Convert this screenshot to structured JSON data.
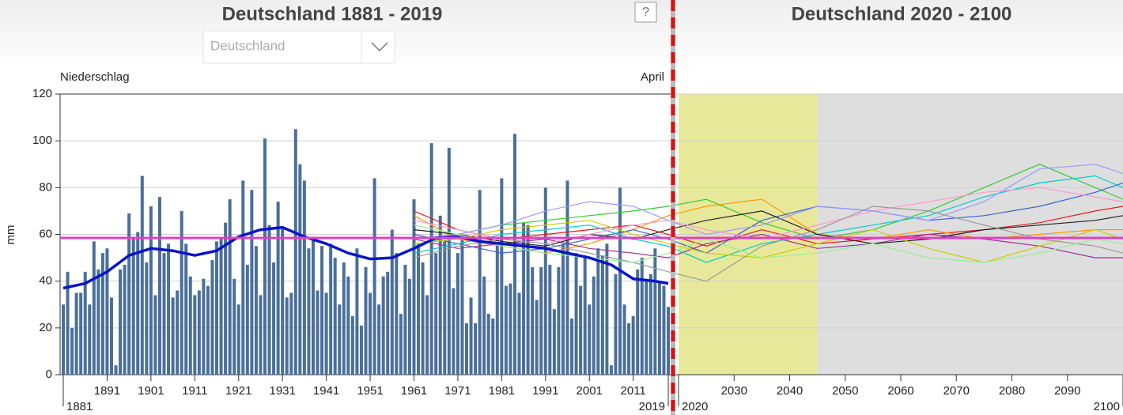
{
  "header": {
    "title_left": "Deutschland 1881 - 2019",
    "title_right": "Deutschland 2020 - 2100",
    "help": "?",
    "dropdown": "Deutschland"
  },
  "chart_data": {
    "type": "bar",
    "y_label": "Niederschlag",
    "month": "April",
    "y_unit": "mm",
    "x": [
      1881,
      1882,
      1883,
      1884,
      1885,
      1886,
      1887,
      1888,
      1889,
      1890,
      1891,
      1892,
      1893,
      1894,
      1895,
      1896,
      1897,
      1898,
      1899,
      1900,
      1901,
      1902,
      1903,
      1904,
      1905,
      1906,
      1907,
      1908,
      1909,
      1910,
      1911,
      1912,
      1913,
      1914,
      1915,
      1916,
      1917,
      1918,
      1919,
      1920,
      1921,
      1922,
      1923,
      1924,
      1925,
      1926,
      1927,
      1928,
      1929,
      1930,
      1931,
      1932,
      1933,
      1934,
      1935,
      1936,
      1937,
      1938,
      1939,
      1940,
      1941,
      1942,
      1943,
      1944,
      1945,
      1946,
      1947,
      1948,
      1949,
      1950,
      1951,
      1952,
      1953,
      1954,
      1955,
      1956,
      1957,
      1958,
      1959,
      1960,
      1961,
      1962,
      1963,
      1964,
      1965,
      1966,
      1967,
      1968,
      1969,
      1970,
      1971,
      1972,
      1973,
      1974,
      1975,
      1976,
      1977,
      1978,
      1979,
      1980,
      1981,
      1982,
      1983,
      1984,
      1985,
      1986,
      1987,
      1988,
      1989,
      1990,
      1991,
      1992,
      1993,
      1994,
      1995,
      1996,
      1997,
      1998,
      1999,
      2000,
      2001,
      2002,
      2003,
      2004,
      2005,
      2006,
      2007,
      2008,
      2009,
      2010,
      2011,
      2012,
      2013,
      2014,
      2015,
      2016,
      2017,
      2018,
      2019
    ],
    "values": [
      30,
      44,
      20,
      35,
      35,
      44,
      30,
      57,
      45,
      52,
      54,
      33,
      4,
      45,
      47,
      69,
      59,
      61,
      85,
      48,
      72,
      34,
      76,
      52,
      56,
      33,
      36,
      70,
      56,
      42,
      34,
      36,
      41,
      38,
      49,
      57,
      58,
      65,
      75,
      41,
      30,
      83,
      47,
      79,
      55,
      34,
      101,
      64,
      48,
      74,
      63,
      33,
      35,
      105,
      90,
      83,
      54,
      59,
      36,
      55,
      35,
      56,
      50,
      30,
      48,
      42,
      25,
      54,
      21,
      46,
      35,
      84,
      30,
      42,
      44,
      62,
      52,
      26,
      47,
      41,
      75,
      56,
      48,
      34,
      99,
      52,
      68,
      57,
      97,
      37,
      52,
      58,
      22,
      33,
      22,
      79,
      42,
      26,
      24,
      56,
      84,
      38,
      39,
      103,
      35,
      65,
      64,
      46,
      32,
      46,
      80,
      47,
      28,
      46,
      56,
      83,
      24,
      52,
      38,
      51,
      30,
      42,
      54,
      51,
      56,
      4,
      43,
      80,
      30,
      22,
      25,
      45,
      50,
      41,
      43,
      54,
      40,
      38,
      29
    ],
    "color": "#4a6f9a",
    "smooth": {
      "color": "#0a14c8",
      "x": [
        1881,
        1886,
        1891,
        1896,
        1901,
        1906,
        1911,
        1916,
        1921,
        1926,
        1931,
        1936,
        1941,
        1946,
        1951,
        1956,
        1961,
        1966,
        1971,
        1976,
        1981,
        1986,
        1991,
        1996,
        2001,
        2006,
        2011,
        2016,
        2019
      ],
      "values": [
        37,
        39,
        44,
        51,
        54,
        53,
        51,
        53,
        59,
        62,
        63,
        59,
        56,
        52,
        49.5,
        50,
        54,
        58.5,
        59,
        57,
        56,
        55,
        54,
        52,
        50,
        47,
        41,
        40,
        39
      ]
    },
    "mean": 58.5,
    "mean_color": "#e040c0",
    "ylim": [
      0,
      120
    ],
    "yticks": [
      0,
      20,
      40,
      60,
      80,
      100,
      120
    ],
    "xlim": [
      1881,
      2019
    ],
    "xticks": [
      1881,
      1891,
      1901,
      1911,
      1921,
      1931,
      1941,
      1951,
      1961,
      1971,
      1981,
      1991,
      2001,
      2011,
      2019
    ],
    "xlim2": [
      2020,
      2100
    ],
    "xticks2": [
      2020,
      2030,
      2040,
      2050,
      2060,
      2070,
      2080,
      2090,
      2100
    ],
    "periods": [
      {
        "range": [
          2020,
          2045
        ],
        "color": "#e8e89a"
      },
      {
        "range": [
          2045,
          2100
        ],
        "color": "#dedede"
      }
    ],
    "proj_x": [
      1961,
      1971,
      1981,
      1991,
      2001,
      2011,
      2019,
      2025,
      2035,
      2045,
      2055,
      2065,
      2075,
      2085,
      2095,
      2100
    ],
    "projections": [
      {
        "color": "#e41a1c",
        "values": [
          70,
          62,
          58,
          60,
          62,
          64,
          60,
          55,
          62,
          56,
          58,
          60,
          62,
          65,
          70,
          72
        ]
      },
      {
        "color": "#ff9900",
        "values": [
          68,
          58,
          55,
          52,
          56,
          62,
          68,
          72,
          75,
          60,
          58,
          62,
          58,
          60,
          62,
          62
        ]
      },
      {
        "color": "#33cc33",
        "values": [
          55,
          60,
          64,
          66,
          68,
          70,
          72,
          75,
          65,
          58,
          62,
          70,
          80,
          90,
          80,
          75
        ]
      },
      {
        "color": "#3366cc",
        "values": [
          60,
          56,
          52,
          54,
          58,
          62,
          58,
          52,
          66,
          72,
          70,
          66,
          68,
          72,
          78,
          82
        ]
      },
      {
        "color": "#993399",
        "values": [
          58,
          54,
          56,
          58,
          54,
          52,
          50,
          56,
          60,
          54,
          56,
          60,
          58,
          55,
          50,
          50
        ]
      },
      {
        "color": "#00cccc",
        "values": [
          52,
          56,
          60,
          62,
          64,
          58,
          55,
          48,
          56,
          60,
          64,
          68,
          76,
          82,
          85,
          80
        ]
      },
      {
        "color": "#222222",
        "values": [
          62,
          60,
          57,
          55,
          60,
          58,
          62,
          66,
          70,
          60,
          56,
          58,
          62,
          64,
          66,
          68
        ]
      },
      {
        "color": "#cccc00",
        "values": [
          56,
          58,
          62,
          64,
          66,
          60,
          56,
          52,
          50,
          56,
          62,
          54,
          48,
          55,
          62,
          58
        ]
      },
      {
        "color": "#ff99cc",
        "values": [
          66,
          62,
          58,
          56,
          60,
          64,
          66,
          62,
          58,
          64,
          70,
          74,
          78,
          80,
          76,
          74
        ]
      },
      {
        "color": "#9999ff",
        "values": [
          58,
          60,
          64,
          70,
          74,
          72,
          66,
          60,
          64,
          72,
          70,
          66,
          74,
          88,
          90,
          86
        ]
      },
      {
        "color": "#999999",
        "values": [
          50,
          55,
          58,
          56,
          52,
          48,
          44,
          40,
          55,
          62,
          72,
          70,
          64,
          58,
          55,
          52
        ]
      },
      {
        "color": "#99ee99",
        "values": [
          64,
          60,
          55,
          52,
          50,
          48,
          52,
          58,
          50,
          52,
          56,
          50,
          48,
          52,
          58,
          56
        ]
      }
    ]
  }
}
